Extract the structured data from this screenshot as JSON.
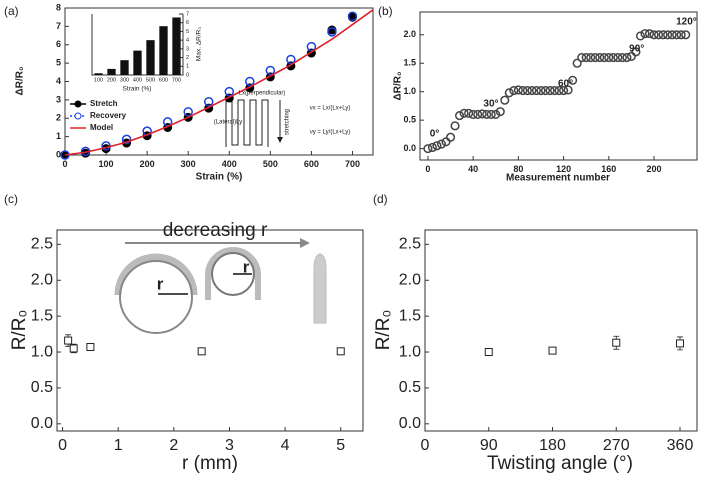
{
  "panel_labels": [
    "(a)",
    "(b)",
    "(c)",
    "(d)"
  ],
  "chart_data": [
    {
      "type": "line",
      "xlabel": "Strain (%)",
      "ylabel": "ΔR/R₀",
      "xlim": [
        0,
        750
      ],
      "ylim": [
        0,
        8
      ],
      "xticks": [
        0,
        100,
        200,
        300,
        400,
        500,
        600,
        700
      ],
      "yticks": [
        0,
        1,
        2,
        3,
        4,
        5,
        6,
        7,
        8
      ],
      "legend": "center left",
      "series": [
        {
          "name": "Stretch",
          "color": "#000000",
          "marker": "filled-circle",
          "x": [
            0,
            50,
            100,
            150,
            200,
            250,
            300,
            350,
            400,
            450,
            500,
            550,
            600,
            650,
            700
          ],
          "values": [
            0,
            0.1,
            0.35,
            0.65,
            1.05,
            1.5,
            2.05,
            2.55,
            3.1,
            3.65,
            4.25,
            4.85,
            5.55,
            6.8,
            7.5
          ]
        },
        {
          "name": "Recovery",
          "color": "#1a3fe0",
          "marker": "open-circle",
          "x": [
            0,
            50,
            100,
            150,
            200,
            250,
            300,
            350,
            400,
            450,
            500,
            550,
            600,
            650,
            700
          ],
          "values": [
            0,
            0.2,
            0.5,
            0.85,
            1.3,
            1.8,
            2.35,
            2.9,
            3.45,
            4.0,
            4.6,
            5.2,
            5.9,
            6.7,
            7.55
          ]
        },
        {
          "name": "Model",
          "color": "#e0202a",
          "marker": "line",
          "x": [
            0,
            50,
            100,
            150,
            200,
            250,
            300,
            350,
            400,
            450,
            500,
            550,
            600,
            650,
            700,
            750
          ],
          "values": [
            0,
            0.15,
            0.4,
            0.7,
            1.1,
            1.55,
            2.05,
            2.6,
            3.15,
            3.7,
            4.3,
            4.9,
            5.6,
            6.3,
            7.1,
            7.9
          ]
        }
      ],
      "annotations": [
        "Lx(perpendicular)",
        "(Lateral)Ly",
        "stretching",
        "νx = Lx/(Lx+Ly)",
        "νy = Ly/(Lx+Ly)"
      ]
    },
    {
      "type": "bar",
      "xlabel": "Strain (%)",
      "ylabel": "Max. ΔR/R₀",
      "yaxis_side": "right",
      "color": "#111111",
      "categories": [
        "100",
        "200",
        "300",
        "400",
        "500",
        "600",
        "700"
      ],
      "values": [
        0.2,
        0.7,
        1.7,
        2.8,
        4.0,
        5.6,
        6.6
      ],
      "ylim": [
        0,
        7
      ],
      "yticks": [
        0,
        1,
        2,
        3,
        4,
        5,
        6,
        7
      ]
    },
    {
      "type": "scatter",
      "xlabel": "Measurement number",
      "ylabel": "ΔR/R₀",
      "xlim": [
        -7,
        238
      ],
      "ylim": [
        -0.2,
        2.4
      ],
      "xticks": [
        0,
        40,
        80,
        120,
        160,
        200
      ],
      "yticks": [
        {
          "value": 0,
          "label": "0.0"
        },
        {
          "value": 0.5,
          "label": "0.5"
        },
        {
          "value": 1,
          "label": "1.0"
        },
        {
          "value": 1.5,
          "label": "1.5"
        },
        {
          "value": 2,
          "label": "2.0"
        }
      ],
      "series": [
        {
          "color": "#444444",
          "marker": "open-circle",
          "x": [
            0,
            4,
            8,
            12,
            16,
            20,
            24,
            28,
            32,
            36,
            40,
            44,
            48,
            52,
            56,
            60,
            64,
            68,
            72,
            76,
            80,
            84,
            88,
            92,
            96,
            100,
            104,
            108,
            112,
            116,
            120,
            124,
            128,
            132,
            136,
            140,
            144,
            148,
            152,
            156,
            160,
            164,
            168,
            172,
            176,
            180,
            184,
            188,
            192,
            196,
            200,
            204,
            208,
            212,
            216,
            220,
            224,
            228
          ],
          "values": [
            0.0,
            0.02,
            0.05,
            0.08,
            0.12,
            0.2,
            0.4,
            0.58,
            0.62,
            0.62,
            0.6,
            0.6,
            0.61,
            0.6,
            0.6,
            0.6,
            0.65,
            0.85,
            0.98,
            1.02,
            1.03,
            1.02,
            1.02,
            1.02,
            1.02,
            1.02,
            1.02,
            1.02,
            1.02,
            1.02,
            1.02,
            1.03,
            1.2,
            1.5,
            1.6,
            1.6,
            1.6,
            1.6,
            1.6,
            1.6,
            1.6,
            1.6,
            1.6,
            1.6,
            1.6,
            1.62,
            1.7,
            1.98,
            2.02,
            2.02,
            2.0,
            2.0,
            2.0,
            2.0,
            2.0,
            2.0,
            2.0,
            2.0
          ]
        }
      ],
      "annotations": [
        "0°",
        "30°",
        "60°",
        "90°",
        "120°"
      ]
    },
    {
      "type": "scatter",
      "xlabel": "r (mm)",
      "ylabel": "R/R₀",
      "xlim": [
        -0.1,
        5.4
      ],
      "ylim": [
        -0.1,
        2.7
      ],
      "xticks": [
        0,
        1,
        2,
        3,
        4,
        5
      ],
      "yticks": [
        {
          "value": 0,
          "label": "0.0"
        },
        {
          "value": 0.5,
          "label": "0.5"
        },
        {
          "value": 1,
          "label": "1.0"
        },
        {
          "value": 1.5,
          "label": "1.5"
        },
        {
          "value": 2,
          "label": "2.0"
        },
        {
          "value": 2.5,
          "label": "2.5"
        }
      ],
      "series": [
        {
          "color": "#222222",
          "marker": "open-square",
          "x": [
            0.1,
            0.2,
            0.5,
            2.5,
            5.0
          ],
          "values": [
            1.16,
            1.05,
            1.07,
            1.01,
            1.01
          ],
          "errors": [
            0.08,
            0.06,
            0.03,
            0.03,
            0.03
          ]
        }
      ],
      "annotations": [
        "decreasing r",
        "r",
        "r"
      ]
    },
    {
      "type": "scatter",
      "xlabel": "Twisting angle (°)",
      "ylabel": "R/R₀",
      "xlim": [
        0,
        384
      ],
      "ylim": [
        -0.1,
        2.7
      ],
      "xticks": [
        0,
        90,
        180,
        270,
        360
      ],
      "yticks": [
        {
          "value": 0,
          "label": "0.0"
        },
        {
          "value": 0.5,
          "label": "0.5"
        },
        {
          "value": 1,
          "label": "1.0"
        },
        {
          "value": 1.5,
          "label": "1.5"
        },
        {
          "value": 2,
          "label": "2.0"
        },
        {
          "value": 2.5,
          "label": "2.5"
        }
      ],
      "series": [
        {
          "color": "#222222",
          "marker": "open-square",
          "x": [
            90,
            180,
            270,
            360
          ],
          "values": [
            1.0,
            1.02,
            1.13,
            1.12
          ],
          "errors": [
            0.02,
            0.03,
            0.09,
            0.09
          ]
        }
      ]
    }
  ]
}
